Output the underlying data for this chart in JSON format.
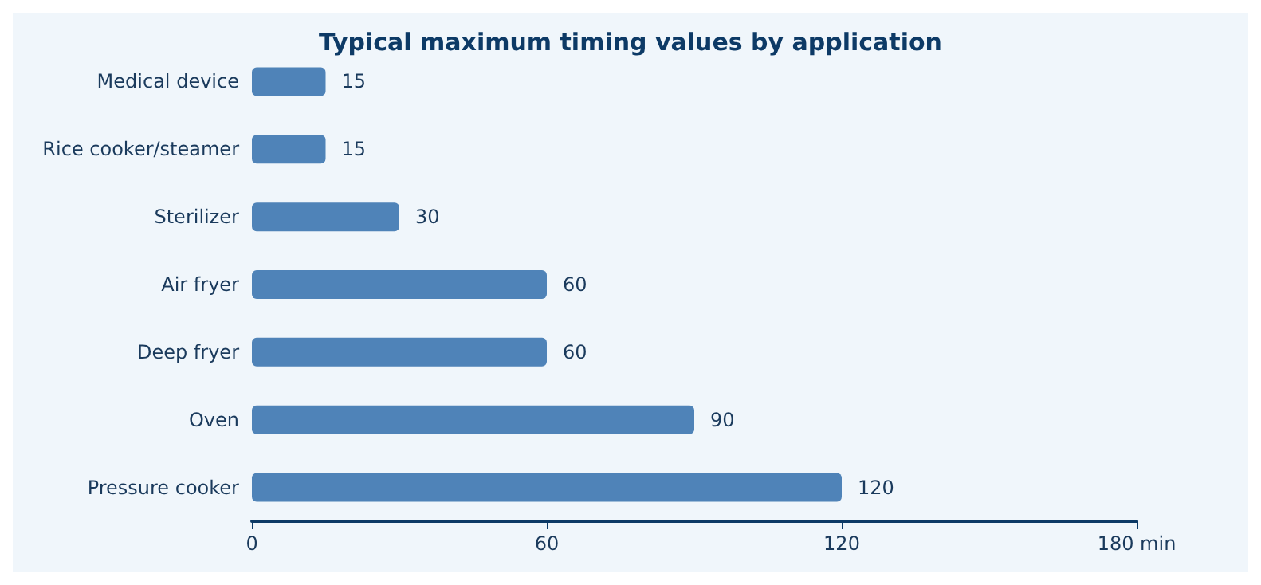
{
  "chart_data": {
    "type": "bar",
    "orientation": "horizontal",
    "title": "Typical maximum timing values by application",
    "categories": [
      "Medical device",
      "Rice cooker/steamer",
      "Sterilizer",
      "Air fryer",
      "Deep fryer",
      "Oven",
      "Pressure cooker"
    ],
    "values": [
      15,
      15,
      30,
      60,
      60,
      90,
      120
    ],
    "color": "#4f83b8",
    "xlim": [
      0,
      180
    ],
    "xticks": [
      0,
      60,
      120,
      {
        "value": 180,
        "label": "180 min"
      }
    ],
    "grid": false,
    "data_labels": true
  }
}
